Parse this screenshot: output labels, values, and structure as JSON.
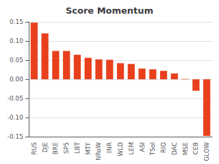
{
  "chart_data": {
    "type": "bar",
    "title": "Score Momentum",
    "categories": [
      "RUS",
      "DJE",
      "BRE",
      "SP5",
      "LBT",
      "MTF",
      "NRoW",
      "INR",
      "WLD",
      "LEM",
      "ASI",
      "TSol",
      "RIO",
      "DAC",
      "MSE",
      "CEB",
      "GLOW"
    ],
    "values": [
      0.148,
      0.12,
      0.074,
      0.074,
      0.064,
      0.056,
      0.052,
      0.051,
      0.042,
      0.04,
      0.028,
      0.026,
      0.022,
      0.015,
      0.001,
      -0.03,
      -0.148
    ],
    "color": "#E8401C",
    "ylim": [
      -0.15,
      0.15
    ],
    "yticks": [
      -0.15,
      {
        "value": -0.1,
        "label": "-0.10"
      },
      -0.05,
      {
        "value": 0.0,
        "label": "0.00"
      },
      0.05,
      {
        "value": 0.1,
        "label": "0.10"
      },
      0.15
    ],
    "grid": true
  }
}
